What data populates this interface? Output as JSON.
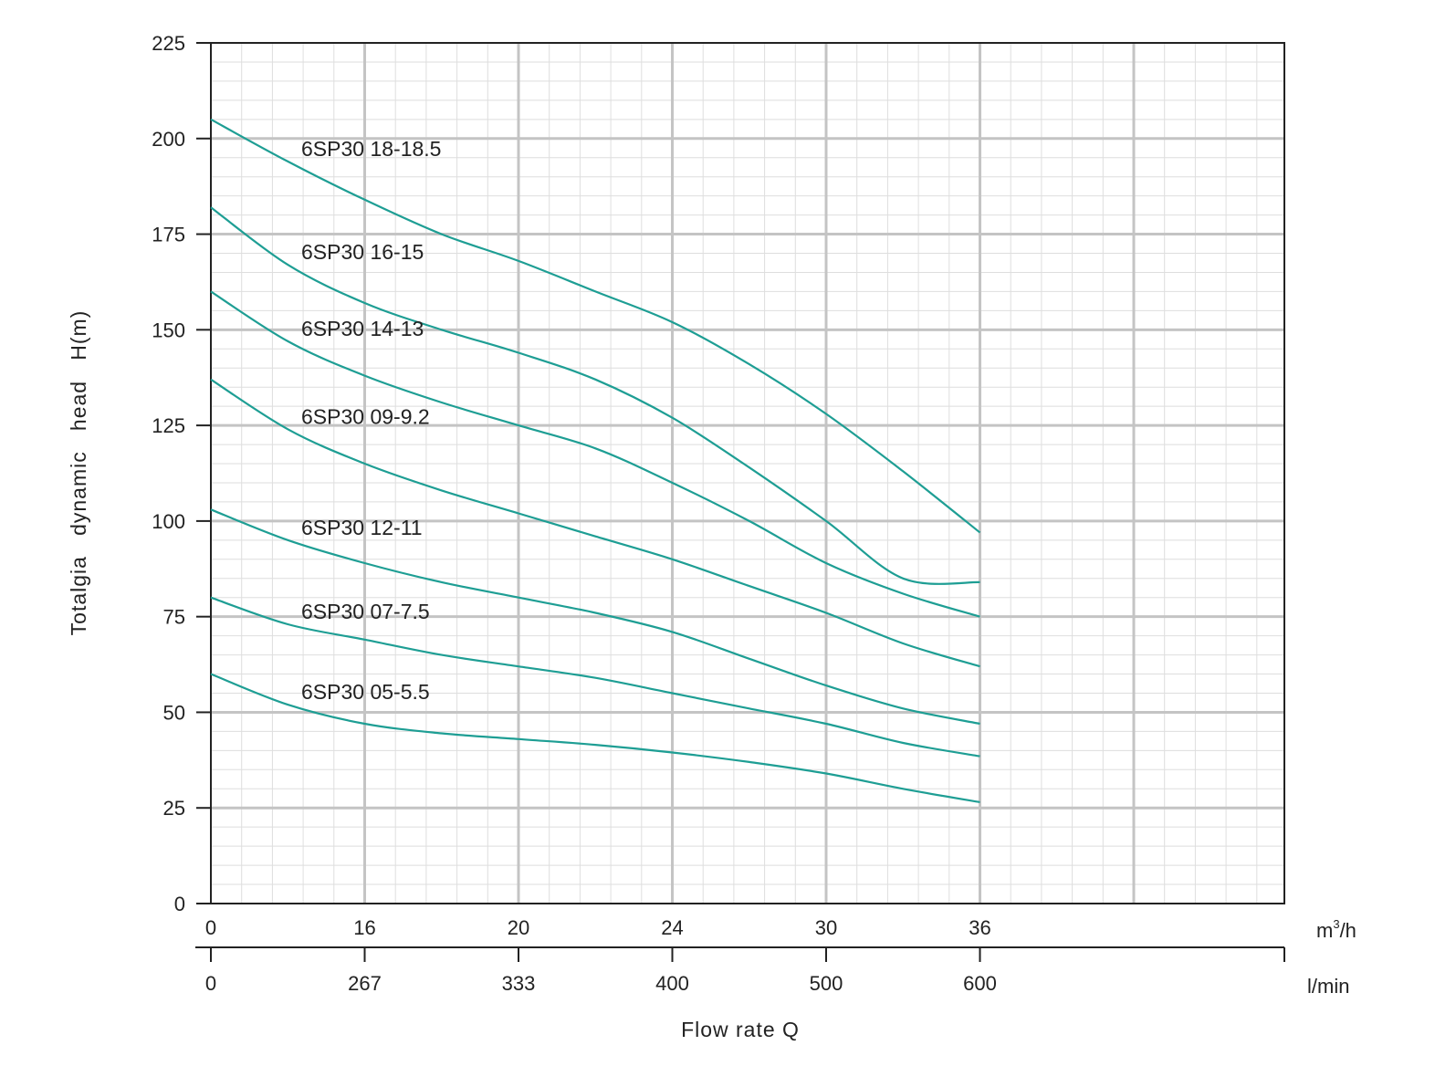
{
  "chart_data": {
    "type": "line",
    "title": "",
    "ylabel": "Totalgia   dynamic   head   H(m)",
    "xlabel": "Flow rate Q",
    "ylim": [
      0,
      225
    ],
    "yticks": [
      0,
      25,
      50,
      75,
      100,
      125,
      150,
      175,
      200,
      225
    ],
    "x_axis_m3h": {
      "unit": "m³/h",
      "unit_base": "m",
      "unit_sup": "3",
      "unit_tail": "/h",
      "ticks": [
        "0",
        "16",
        "20",
        "24",
        "30",
        "36"
      ]
    },
    "x_axis_lmin": {
      "unit": "l/min",
      "ticks": [
        "0",
        "267",
        "333",
        "400",
        "500",
        "600"
      ]
    },
    "grid": true,
    "line_color": "#1e9e94",
    "series": [
      {
        "name": "6SP30 18-18.5",
        "points": [
          [
            0,
            205
          ],
          [
            0.5,
            194
          ],
          [
            1,
            184
          ],
          [
            1.5,
            175
          ],
          [
            2,
            168
          ],
          [
            2.5,
            160
          ],
          [
            3,
            152
          ],
          [
            3.5,
            141
          ],
          [
            4,
            128
          ],
          [
            4.5,
            113
          ],
          [
            5,
            97
          ]
        ]
      },
      {
        "name": "6SP30 16-15",
        "points": [
          [
            0,
            182
          ],
          [
            0.5,
            167
          ],
          [
            1,
            157
          ],
          [
            1.5,
            150
          ],
          [
            2,
            144
          ],
          [
            2.5,
            137
          ],
          [
            3,
            127
          ],
          [
            3.5,
            114
          ],
          [
            4,
            100
          ],
          [
            4.5,
            85
          ],
          [
            5,
            84
          ]
        ]
      },
      {
        "name": "6SP30 14-13",
        "points": [
          [
            0,
            160
          ],
          [
            0.5,
            147
          ],
          [
            1,
            138
          ],
          [
            1.5,
            131
          ],
          [
            2,
            125
          ],
          [
            2.5,
            119
          ],
          [
            3,
            110
          ],
          [
            3.5,
            100
          ],
          [
            4,
            89
          ],
          [
            4.5,
            81
          ],
          [
            5,
            75
          ]
        ]
      },
      {
        "name": "6SP30 09-9.2",
        "points": [
          [
            0,
            137
          ],
          [
            0.5,
            124
          ],
          [
            1,
            115
          ],
          [
            1.5,
            108
          ],
          [
            2,
            102
          ],
          [
            2.5,
            96
          ],
          [
            3,
            90
          ],
          [
            3.5,
            83
          ],
          [
            4,
            76
          ],
          [
            4.5,
            68
          ],
          [
            5,
            62
          ]
        ]
      },
      {
        "name": "6SP30 12-11",
        "points": [
          [
            0,
            103
          ],
          [
            0.5,
            95
          ],
          [
            1,
            89
          ],
          [
            1.5,
            84
          ],
          [
            2,
            80
          ],
          [
            2.5,
            76
          ],
          [
            3,
            71
          ],
          [
            3.5,
            64
          ],
          [
            4,
            57
          ],
          [
            4.5,
            51
          ],
          [
            5,
            47
          ]
        ]
      },
      {
        "name": "6SP30 07-7.5",
        "points": [
          [
            0,
            80
          ],
          [
            0.5,
            73
          ],
          [
            1,
            69
          ],
          [
            1.5,
            65
          ],
          [
            2,
            62
          ],
          [
            2.5,
            59
          ],
          [
            3,
            55
          ],
          [
            3.5,
            51
          ],
          [
            4,
            47
          ],
          [
            4.5,
            42
          ],
          [
            5,
            38.5
          ]
        ]
      },
      {
        "name": "6SP30 05-5.5",
        "points": [
          [
            0,
            60
          ],
          [
            0.5,
            52
          ],
          [
            1,
            47
          ],
          [
            1.5,
            44.5
          ],
          [
            2,
            43
          ],
          [
            2.5,
            41.5
          ],
          [
            3,
            39.5
          ],
          [
            3.5,
            37
          ],
          [
            4,
            34
          ],
          [
            4.5,
            30
          ],
          [
            5,
            26.5
          ]
        ]
      }
    ]
  }
}
